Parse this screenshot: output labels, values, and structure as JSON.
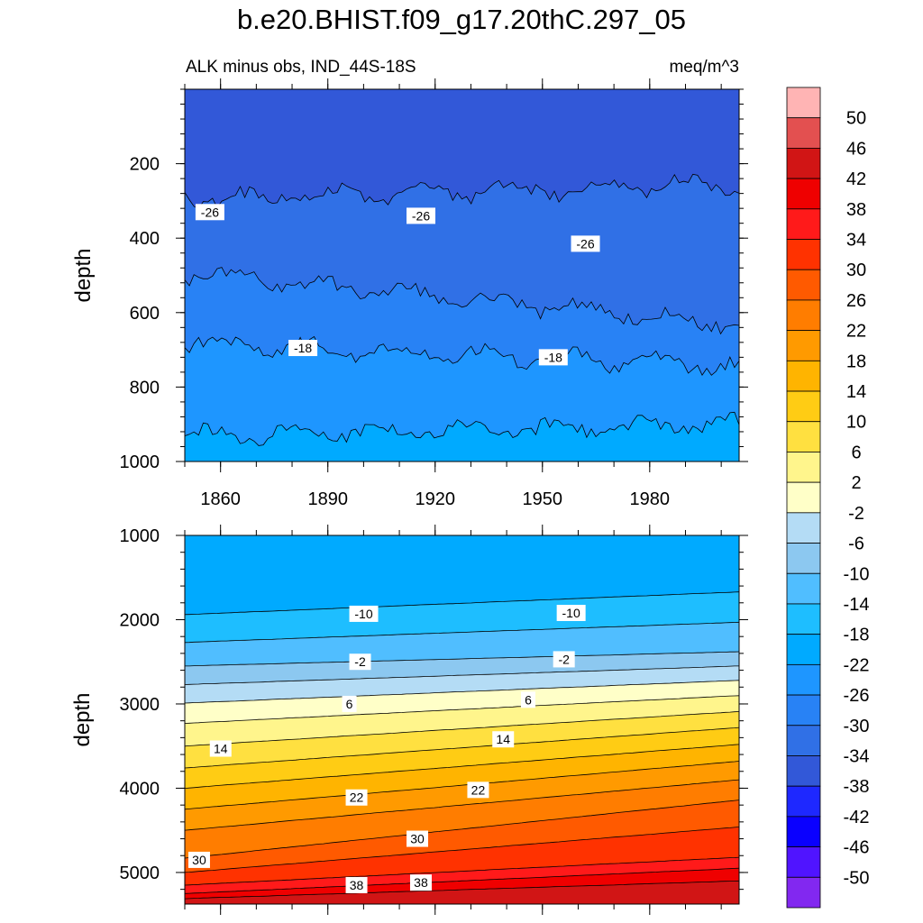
{
  "title": "b.e20.BHIST.f09_g17.20thC.297_05",
  "subtitle_left": "ALK minus obs, IND_44S-18S",
  "subtitle_right": "meq/m^3",
  "chart_data": [
    {
      "type": "heatmap",
      "panel": "upper",
      "title": "ALK minus obs, IND_44S-18S",
      "units": "meq/m^3",
      "xlabel": "",
      "ylabel": "depth",
      "xlim": [
        1850,
        2005
      ],
      "ylim": [
        1000,
        0
      ],
      "x_ticks": [
        "1860",
        "1890",
        "1920",
        "1950",
        "1980"
      ],
      "y_ticks": [
        "200",
        "400",
        "600",
        "800",
        "1000"
      ],
      "contours": [
        {
          "level": -30,
          "depth_start": 295,
          "depth_end": 255
        },
        {
          "level": -26,
          "depth_start": 495,
          "depth_end": 630
        },
        {
          "level": -22,
          "depth_start": 680,
          "depth_end": 745
        },
        {
          "level": -18,
          "depth_start": 930,
          "depth_end": 900
        }
      ],
      "contour_labels": [
        {
          "text": "-26",
          "year": 1853,
          "depth": 330
        },
        {
          "text": "-26",
          "year": 1912,
          "depth": 340
        },
        {
          "text": "-26",
          "year": 1958,
          "depth": 415
        },
        {
          "text": "-18",
          "year": 1879,
          "depth": 695
        },
        {
          "text": "-18",
          "year": 1949,
          "depth": 720
        }
      ]
    },
    {
      "type": "heatmap",
      "panel": "lower",
      "xlabel": "",
      "ylabel": "depth",
      "xlim": [
        1850,
        2005
      ],
      "ylim": [
        5375,
        1000
      ],
      "y_ticks": [
        "1000",
        "2000",
        "3000",
        "4000",
        "5000"
      ],
      "contours": [
        {
          "level": -14,
          "depth_start": 1940,
          "depth_end": 1670
        },
        {
          "level": -10,
          "depth_start": 2270,
          "depth_end": 2030
        },
        {
          "level": -6,
          "depth_start": 2550,
          "depth_end": 2380
        },
        {
          "level": -2,
          "depth_start": 2770,
          "depth_end": 2550
        },
        {
          "level": 2,
          "depth_start": 2990,
          "depth_end": 2720
        },
        {
          "level": 6,
          "depth_start": 3230,
          "depth_end": 2900
        },
        {
          "level": 10,
          "depth_start": 3500,
          "depth_end": 3090
        },
        {
          "level": 14,
          "depth_start": 3760,
          "depth_end": 3280
        },
        {
          "level": 18,
          "depth_start": 4000,
          "depth_end": 3480
        },
        {
          "level": 22,
          "depth_start": 4250,
          "depth_end": 3680
        },
        {
          "level": 26,
          "depth_start": 4500,
          "depth_end": 3900
        },
        {
          "level": 30,
          "depth_start": 4830,
          "depth_end": 4140
        },
        {
          "level": 34,
          "depth_start": 5000,
          "depth_end": 4460
        },
        {
          "level": 38,
          "depth_start": 5150,
          "depth_end": 4820
        },
        {
          "level": 42,
          "depth_start": 5250,
          "depth_end": 4950
        },
        {
          "level": 46,
          "depth_start": 5310,
          "depth_end": 5100
        }
      ],
      "contour_labels": [
        {
          "text": "-10",
          "year": 1896,
          "depth": 1930
        },
        {
          "text": "-10",
          "year": 1954,
          "depth": 1920
        },
        {
          "text": "-2",
          "year": 1896,
          "depth": 2500
        },
        {
          "text": "-2",
          "year": 1953,
          "depth": 2470
        },
        {
          "text": "6",
          "year": 1894,
          "depth": 3000
        },
        {
          "text": "6",
          "year": 1944,
          "depth": 2950
        },
        {
          "text": "14",
          "year": 1857,
          "depth": 3530
        },
        {
          "text": "14",
          "year": 1936,
          "depth": 3420
        },
        {
          "text": "22",
          "year": 1895,
          "depth": 4110
        },
        {
          "text": "22",
          "year": 1929,
          "depth": 4020
        },
        {
          "text": "30",
          "year": 1851,
          "depth": 4850
        },
        {
          "text": "30",
          "year": 1912,
          "depth": 4600
        },
        {
          "text": "38",
          "year": 1895,
          "depth": 5150
        },
        {
          "text": "38",
          "year": 1913,
          "depth": 5120
        }
      ]
    }
  ],
  "colorbar": {
    "labels": [
      "50",
      "46",
      "42",
      "38",
      "34",
      "30",
      "26",
      "22",
      "18",
      "14",
      "10",
      "6",
      "2",
      "-2",
      "-6",
      "-10",
      "-14",
      "-18",
      "-22",
      "-26",
      "-30",
      "-34",
      "-38",
      "-42",
      "-46",
      "-50"
    ],
    "colors": [
      "#ffb4b4",
      "#e35050",
      "#d11515",
      "#ef0000",
      "#ff1a1a",
      "#ff3200",
      "#ff5a00",
      "#ff7d00",
      "#ff9a00",
      "#ffb400",
      "#ffcc14",
      "#ffe040",
      "#fff58c",
      "#ffffc8",
      "#b4dcf5",
      "#8cc8f0",
      "#50beff",
      "#1ebeff",
      "#00aaff",
      "#1e96ff",
      "#2882f5",
      "#3070e6",
      "#3258d8",
      "#1e28ff",
      "#0a00ff",
      "#5014ff",
      "#8228f0"
    ]
  }
}
